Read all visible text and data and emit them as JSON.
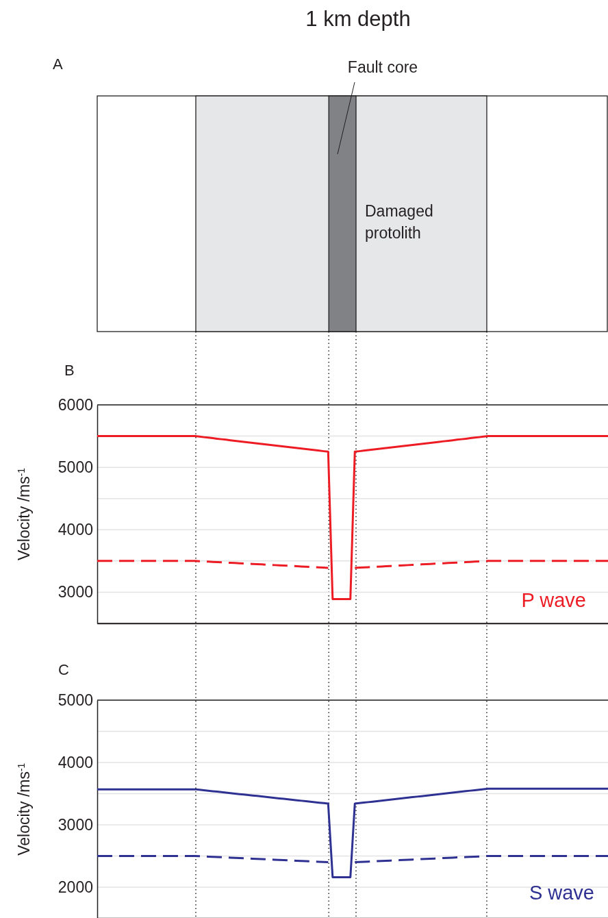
{
  "chart_data": [
    {
      "type": "other",
      "title": "1 km depth",
      "annotations": [
        "A",
        "Fault core",
        "Damaged protolith"
      ]
    },
    {
      "type": "line",
      "annotations": [
        "B",
        "P wave"
      ],
      "ylabel": "Velocity /ms$^{-1}$",
      "ylim": [
        2500,
        6000
      ],
      "categories": [
        null,
        null,
        null,
        null,
        null,
        null,
        null,
        null,
        null,
        null,
        null,
        null,
        null,
        null,
        null,
        null,
        null,
        null,
        null,
        null,
        null,
        null,
        null,
        null,
        null,
        null,
        null,
        null,
        null,
        null,
        null,
        null,
        null,
        null,
        null,
        null,
        null,
        null,
        null,
        null,
        null,
        null,
        null,
        null,
        null,
        null,
        null,
        null,
        null,
        null,
        null,
        null,
        null,
        null,
        null,
        null,
        null,
        null,
        null,
        null,
        null,
        null,
        null,
        null,
        null,
        null,
        null,
        null,
        null,
        null,
        null,
        null,
        null,
        null,
        null,
        null,
        null,
        null,
        null,
        null,
        null,
        null,
        null,
        null,
        null,
        null,
        null,
        null,
        null,
        null,
        null,
        null,
        null,
        null,
        null,
        null,
        null,
        null,
        null,
        null,
        null,
        null,
        null,
        null,
        null,
        null,
        null,
        null,
        null,
        null,
        null,
        null,
        null,
        null,
        null,
        null
      ],
      "yticks": [
        {
          "value": 2500,
          "label": null
        },
        3000,
        {
          "value": 3500,
          "label": null
        },
        4000,
        {
          "value": 4500,
          "label": null
        },
        5000,
        {
          "value": 5500,
          "label": null
        },
        6000
      ],
      "grid": "y",
      "tick_labels": "y",
      "series": [
        {
          "color": "#ed1c24",
          "line_style": "solid",
          "values": [
            5500,
            5500,
            5500,
            5500,
            5500,
            5500,
            5500,
            5500,
            5500,
            5500,
            5500,
            5500,
            5500,
            5500,
            5500,
            5500,
            5500,
            5500,
            5500,
            5500,
            5500,
            5500,
            5500,
            5492,
            5483,
            5475,
            5467,
            5458,
            5450,
            5442,
            5433,
            5425,
            5417,
            5408,
            5400,
            5392,
            5383,
            5375,
            5367,
            5358,
            5350,
            5342,
            5333,
            5325,
            5317,
            5308,
            5300,
            5292,
            5283,
            5275,
            5267,
            5258,
            5250,
            2890,
            2890,
            2890,
            2890,
            2890,
            5250,
            5258,
            5267,
            5275,
            5283,
            5292,
            5300,
            5308,
            5317,
            5325,
            5333,
            5342,
            5350,
            5358,
            5367,
            5375,
            5383,
            5392,
            5400,
            5408,
            5417,
            5425,
            5433,
            5442,
            5450,
            5458,
            5467,
            5475,
            5483,
            5492,
            5500,
            5500,
            5500,
            5500,
            5500,
            5500,
            5500,
            5500,
            5500,
            5500,
            5500,
            5500,
            5500,
            5500,
            5500,
            5500,
            5500,
            5500,
            5500,
            5500,
            5500,
            5500,
            5500,
            5500,
            5500,
            5500,
            5500,
            5500
          ]
        },
        {
          "color": "#ed1c24",
          "line_style": "dashed",
          "values": [
            3500,
            3500,
            3500,
            3500,
            3500,
            3500,
            3500,
            3500,
            3500,
            3500,
            3500,
            3500,
            3500,
            3500,
            3500,
            3500,
            3500,
            3500,
            3500,
            3500,
            3500,
            3500,
            3500,
            3496,
            3493,
            3489,
            3485,
            3482,
            3478,
            3474,
            3471,
            3467,
            3463,
            3460,
            3456,
            3452,
            3449,
            3445,
            3441,
            3438,
            3434,
            3430,
            3427,
            3423,
            3419,
            3416,
            3412,
            3408,
            3405,
            3401,
            3397,
            3394,
            3390,
            null,
            null,
            null,
            null,
            null,
            3390,
            3394,
            3397,
            3401,
            3405,
            3408,
            3412,
            3416,
            3419,
            3423,
            3427,
            3430,
            3434,
            3438,
            3441,
            3445,
            3449,
            3452,
            3456,
            3460,
            3463,
            3467,
            3471,
            3474,
            3478,
            3482,
            3485,
            3489,
            3493,
            3496,
            3500,
            3500,
            3500,
            3500,
            3500,
            3500,
            3500,
            3500,
            3500,
            3500,
            3500,
            3500,
            3500,
            3500,
            3500,
            3500,
            3500,
            3500,
            3500,
            3500,
            3500,
            3500,
            3500,
            3500,
            3500,
            3500,
            3500,
            3500
          ]
        }
      ]
    },
    {
      "type": "line",
      "annotations": [
        "C",
        "S wave"
      ],
      "ylabel": "Velocity /ms$^{-1}$",
      "ylim": [
        1500,
        5000
      ],
      "categories": [
        null,
        null,
        null,
        null,
        null,
        null,
        null,
        null,
        null,
        null,
        null,
        null,
        null,
        null,
        null,
        null,
        null,
        null,
        null,
        null,
        null,
        null,
        null,
        null,
        null,
        null,
        null,
        null,
        null,
        null,
        null,
        null,
        null,
        null,
        null,
        null,
        null,
        null,
        null,
        null,
        null,
        null,
        null,
        null,
        null,
        null,
        null,
        null,
        null,
        null,
        null,
        null,
        null,
        null,
        null,
        null,
        null,
        null,
        null,
        null,
        null,
        null,
        null,
        null,
        null,
        null,
        null,
        null,
        null,
        null,
        null,
        null,
        null,
        null,
        null,
        null,
        null,
        null,
        null,
        null,
        null,
        null,
        null,
        null,
        null,
        null,
        null,
        null,
        null,
        null,
        null,
        null,
        null,
        null,
        null,
        null,
        null,
        null,
        null,
        null,
        null,
        null,
        null,
        null,
        null,
        null,
        null,
        null,
        null,
        null,
        null,
        null,
        null,
        null,
        null,
        null
      ],
      "yticks": [
        {
          "value": 1500,
          "label": null
        },
        2000,
        {
          "value": 2500,
          "label": null
        },
        3000,
        {
          "value": 3500,
          "label": null
        },
        4000,
        {
          "value": 4500,
          "label": null
        },
        5000
      ],
      "grid": "y",
      "tick_labels": "y",
      "series": [
        {
          "color": "#2e3192",
          "line_style": "solid",
          "values": [
            3570,
            3570,
            3570,
            3570,
            3570,
            3570,
            3570,
            3570,
            3570,
            3570,
            3570,
            3570,
            3570,
            3570,
            3570,
            3570,
            3570,
            3570,
            3570,
            3570,
            3570,
            3570,
            3570,
            3562,
            3555,
            3547,
            3539,
            3532,
            3524,
            3516,
            3509,
            3501,
            3493,
            3486,
            3478,
            3470,
            3463,
            3455,
            3447,
            3440,
            3432,
            3424,
            3417,
            3409,
            3401,
            3394,
            3386,
            3378,
            3371,
            3363,
            3355,
            3348,
            3340,
            2160,
            2160,
            2160,
            2160,
            2160,
            3340,
            3348,
            3356,
            3364,
            3372,
            3380,
            3388,
            3396,
            3404,
            3412,
            3420,
            3428,
            3436,
            3444,
            3452,
            3460,
            3468,
            3476,
            3484,
            3492,
            3500,
            3508,
            3516,
            3524,
            3532,
            3540,
            3548,
            3556,
            3564,
            3572,
            3580,
            3580,
            3580,
            3580,
            3580,
            3580,
            3580,
            3580,
            3580,
            3580,
            3580,
            3580,
            3580,
            3580,
            3580,
            3580,
            3580,
            3580,
            3580,
            3580,
            3580,
            3580,
            3580,
            3580,
            3580,
            3580,
            3580,
            3580
          ]
        },
        {
          "color": "#2e3192",
          "line_style": "dashed",
          "values": [
            2500,
            2500,
            2500,
            2500,
            2500,
            2500,
            2500,
            2500,
            2500,
            2500,
            2500,
            2500,
            2500,
            2500,
            2500,
            2500,
            2500,
            2500,
            2500,
            2500,
            2500,
            2500,
            2500,
            2497,
            2493,
            2490,
            2487,
            2483,
            2480,
            2477,
            2473,
            2470,
            2467,
            2463,
            2460,
            2457,
            2453,
            2450,
            2447,
            2443,
            2440,
            2437,
            2433,
            2430,
            2427,
            2423,
            2420,
            2417,
            2413,
            2410,
            2407,
            2403,
            2400,
            null,
            null,
            null,
            null,
            null,
            2400,
            2403,
            2407,
            2410,
            2413,
            2417,
            2420,
            2423,
            2427,
            2430,
            2433,
            2437,
            2440,
            2443,
            2447,
            2450,
            2453,
            2457,
            2460,
            2463,
            2467,
            2470,
            2473,
            2477,
            2480,
            2483,
            2487,
            2490,
            2493,
            2497,
            2500,
            2500,
            2500,
            2500,
            2500,
            2500,
            2500,
            2500,
            2500,
            2500,
            2500,
            2500,
            2500,
            2500,
            2500,
            2500,
            2500,
            2500,
            2500,
            2500,
            2500,
            2500,
            2500,
            2500,
            2500,
            2500,
            2500,
            2500
          ]
        }
      ]
    }
  ]
}
